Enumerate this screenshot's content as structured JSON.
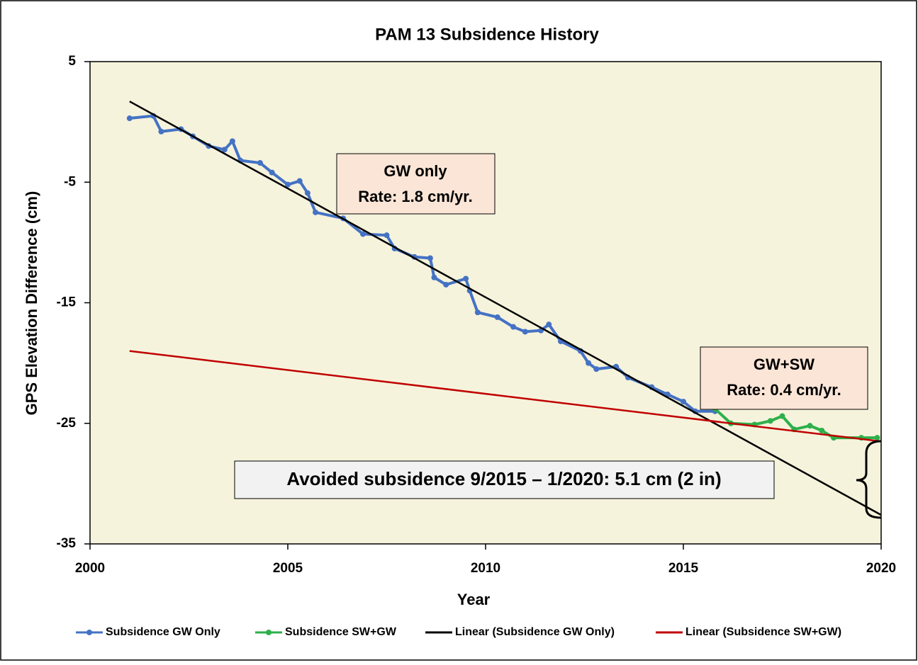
{
  "chart_data": {
    "type": "line",
    "title": "PAM 13 Subsidence History",
    "x_label": "Year",
    "y_label": "GPS Elevation Difference (cm)",
    "xlim": [
      2000,
      2020
    ],
    "xticks": [
      2000,
      2005,
      2010,
      2015,
      2020
    ],
    "ylim": [
      -35,
      5
    ],
    "yticks": [
      5,
      -5,
      -15,
      -25,
      -35
    ],
    "plot_background": "#f6f3dc",
    "legend": "bottom",
    "annotations": [
      {
        "lines": [
          "GW only",
          "Rate: 1.8 cm/yr."
        ]
      },
      {
        "lines": [
          "GW+SW",
          "Rate: 0.4 cm/yr."
        ]
      },
      {
        "lines": [
          "Avoided subsidence 9/2015 – 1/2020: 5.1 cm (2 in)"
        ]
      }
    ],
    "series": [
      {
        "name": "Subsidence GW Only",
        "color": "#4472c4",
        "markers": true,
        "x": [
          2001.0,
          2001.6,
          2001.8,
          2002.3,
          2002.6,
          2003.0,
          2003.4,
          2003.6,
          2003.8,
          2004.3,
          2004.6,
          2005.0,
          2005.3,
          2005.5,
          2005.7,
          2006.4,
          2006.9,
          2007.5,
          2007.7,
          2008.2,
          2008.6,
          2008.7,
          2009.0,
          2009.5,
          2009.6,
          2009.8,
          2010.3,
          2010.7,
          2011.0,
          2011.4,
          2011.6,
          2011.9,
          2012.4,
          2012.6,
          2012.8,
          2013.3,
          2013.6,
          2014.2,
          2014.6,
          2015.0,
          2015.3,
          2015.8
        ],
        "values": [
          0.3,
          0.5,
          -0.8,
          -0.6,
          -1.2,
          -2.0,
          -2.3,
          -1.6,
          -3.2,
          -3.4,
          -4.2,
          -5.2,
          -4.9,
          -5.9,
          -7.5,
          -8.0,
          -9.3,
          -9.4,
          -10.5,
          -11.2,
          -11.3,
          -12.9,
          -13.5,
          -13.0,
          -14.0,
          -15.8,
          -16.2,
          -17.0,
          -17.4,
          -17.3,
          -16.8,
          -18.2,
          -19.0,
          -20.0,
          -20.5,
          -20.3,
          -21.2,
          -22.0,
          -22.6,
          -23.2,
          -24.0,
          -24.0
        ]
      },
      {
        "name": "Subsidence SW+GW",
        "color": "#2db04a",
        "markers": true,
        "x": [
          2015.8,
          2016.2,
          2016.8,
          2017.2,
          2017.5,
          2017.8,
          2018.2,
          2018.5,
          2018.8,
          2019.5,
          2019.9
        ],
        "values": [
          -23.8,
          -25.0,
          -25.1,
          -24.8,
          -24.4,
          -25.5,
          -25.2,
          -25.6,
          -26.2,
          -26.2,
          -26.2
        ]
      },
      {
        "name": "Linear (Subsidence GW Only)",
        "color": "#000000",
        "markers": false,
        "x": [
          2001,
          2020
        ],
        "values": [
          1.7,
          -32.6
        ]
      },
      {
        "name": "Linear (Subsidence SW+GW)",
        "color": "#c00000",
        "markers": false,
        "x": [
          2001,
          2020
        ],
        "values": [
          -19.0,
          -26.5
        ]
      }
    ]
  }
}
